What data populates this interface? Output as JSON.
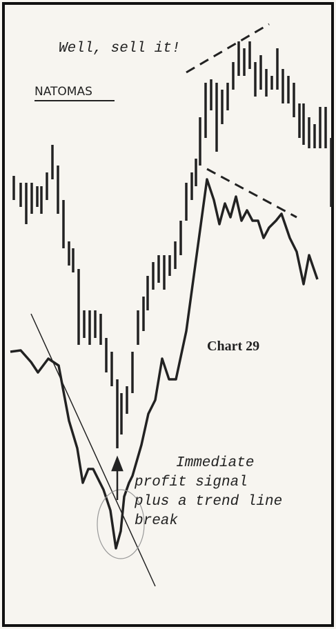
{
  "figure": {
    "headline": "Well, sell it!",
    "stock": "NATOMAS",
    "caption": "Chart 29",
    "annotation": [
      "Immediate",
      "profit signal",
      "plus a trend line",
      "break"
    ]
  }
}
